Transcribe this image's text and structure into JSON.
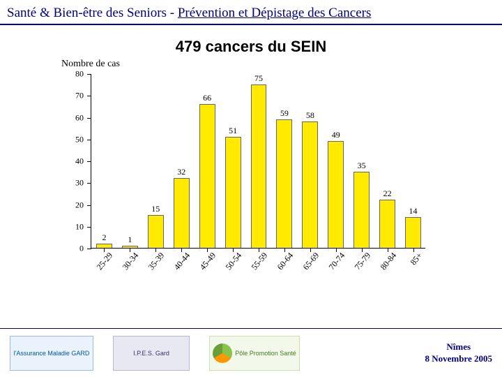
{
  "header": {
    "prefix": "Santé & Bien-être des Seniors - ",
    "underlined": "Prévention et Dépistage des Cancers"
  },
  "chart": {
    "type": "bar",
    "title": "479 cancers du SEIN",
    "ylabel": "Nombre de cas",
    "ylim": [
      0,
      80
    ],
    "ytick_step": 10,
    "categories": [
      "25-29",
      "30-34",
      "35-39",
      "40-44",
      "45-49",
      "50-54",
      "55-59",
      "60-64",
      "65-69",
      "70-74",
      "75-79",
      "80-84",
      "85+"
    ],
    "values": [
      2,
      1,
      15,
      32,
      66,
      51,
      75,
      59,
      58,
      49,
      35,
      22,
      14
    ],
    "bar_color": "#ffea00",
    "bar_border": "#666666",
    "axis_color": "#000000",
    "background_color": "#ffffff",
    "bar_width_ratio": 0.62,
    "value_label_fontsize": 12,
    "tick_label_fontsize": 12,
    "title_fontsize": 22,
    "xlabel_rotation_deg": -50
  },
  "logos": {
    "l1": "l'Assurance Maladie GARD",
    "l2": "I.P.E.S. Gard",
    "l3": "Pôle Promotion Santé"
  },
  "footer": {
    "city": "Nîmes",
    "date": "8 Novembre 2005"
  }
}
